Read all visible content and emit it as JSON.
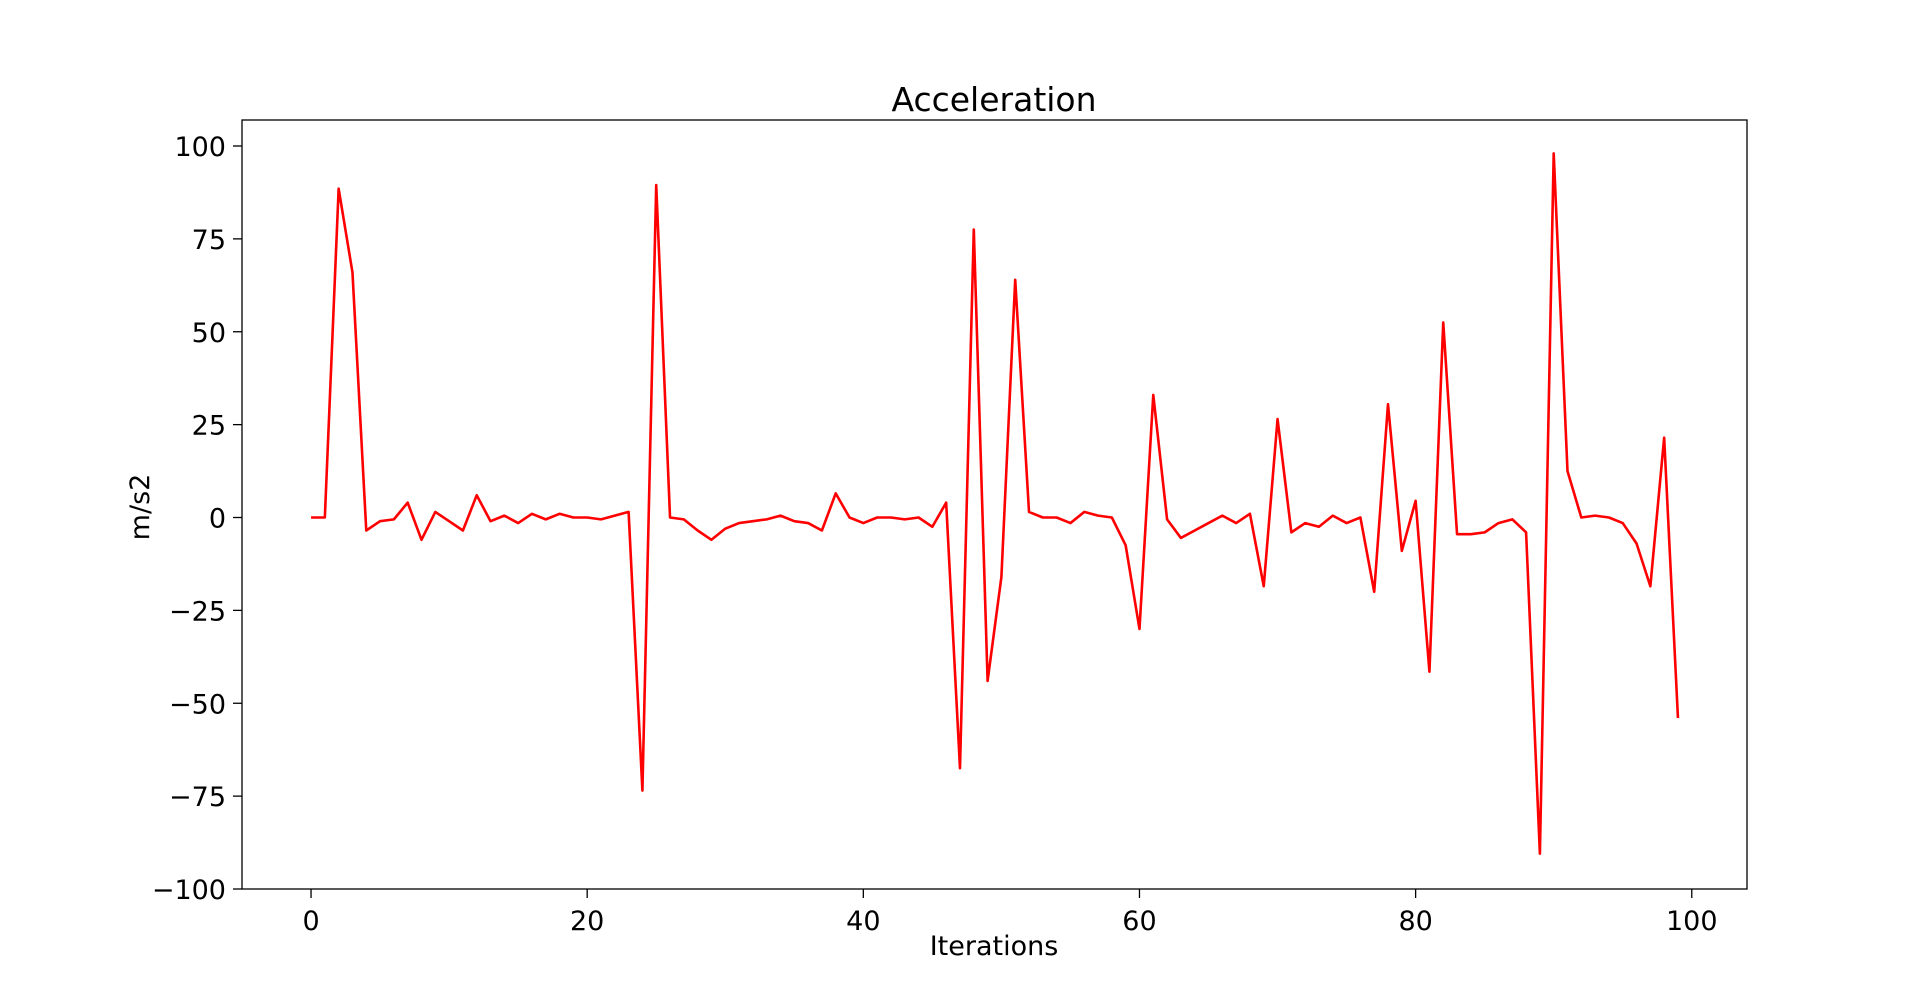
{
  "chart_data": {
    "type": "line",
    "title": "Acceleration",
    "xlabel": "Iterations",
    "ylabel": "m/s2",
    "xlim": [
      -5,
      104
    ],
    "ylim": [
      -100,
      107
    ],
    "xticks": [
      0,
      20,
      40,
      60,
      80,
      100
    ],
    "yticks": [
      -100,
      -75,
      -50,
      -25,
      0,
      25,
      50,
      75,
      100
    ],
    "grid": false,
    "legend": "none",
    "series": [
      {
        "color": "#ff0000",
        "x": [
          0,
          1,
          2,
          3,
          4,
          5,
          6,
          7,
          8,
          9,
          10,
          11,
          12,
          13,
          14,
          15,
          16,
          17,
          18,
          19,
          20,
          21,
          22,
          23,
          24,
          25,
          26,
          27,
          28,
          29,
          30,
          31,
          32,
          33,
          34,
          35,
          36,
          37,
          38,
          39,
          40,
          41,
          42,
          43,
          44,
          45,
          46,
          47,
          48,
          49,
          50,
          51,
          52,
          53,
          54,
          55,
          56,
          57,
          58,
          59,
          60,
          61,
          62,
          63,
          64,
          65,
          66,
          67,
          68,
          69,
          70,
          71,
          72,
          73,
          74,
          75,
          76,
          77,
          78,
          79,
          80,
          81,
          82,
          83,
          84,
          85,
          86,
          87,
          88,
          89,
          90,
          91,
          92,
          93,
          94,
          95,
          96,
          97,
          98,
          99
        ],
        "values": [
          0,
          0,
          88.5,
          66,
          -3.5,
          -1,
          -0.5,
          4,
          -6,
          1.5,
          -1,
          -3.5,
          6,
          -1,
          0.5,
          -1.5,
          1,
          -0.5,
          1,
          0,
          0,
          -0.5,
          0.5,
          1.5,
          -73.5,
          89.5,
          0,
          -0.5,
          -3.5,
          -6,
          -3,
          -1.5,
          -1,
          -0.5,
          0.5,
          -1,
          -1.5,
          -3.5,
          6.5,
          0,
          -1.5,
          0,
          0,
          -0.5,
          0,
          -2.5,
          4,
          -67.5,
          77.5,
          -44,
          -16,
          64,
          1.5,
          0,
          0,
          -1.5,
          1.5,
          0.5,
          0,
          -7.5,
          -30,
          33,
          -0.5,
          -5.5,
          -3.5,
          -1.5,
          0.5,
          -1.5,
          1,
          -18.5,
          26.5,
          -4,
          -1.5,
          -2.5,
          0.5,
          -1.5,
          0,
          -20,
          30.5,
          -9,
          4.5,
          -41.5,
          52.5,
          -4.5,
          -4.5,
          -4,
          -1.5,
          -0.5,
          -4,
          -90.5,
          98,
          12.5,
          0,
          0.5,
          0,
          -1.5,
          -7,
          -18.5,
          21.5,
          -54
        ]
      }
    ]
  }
}
